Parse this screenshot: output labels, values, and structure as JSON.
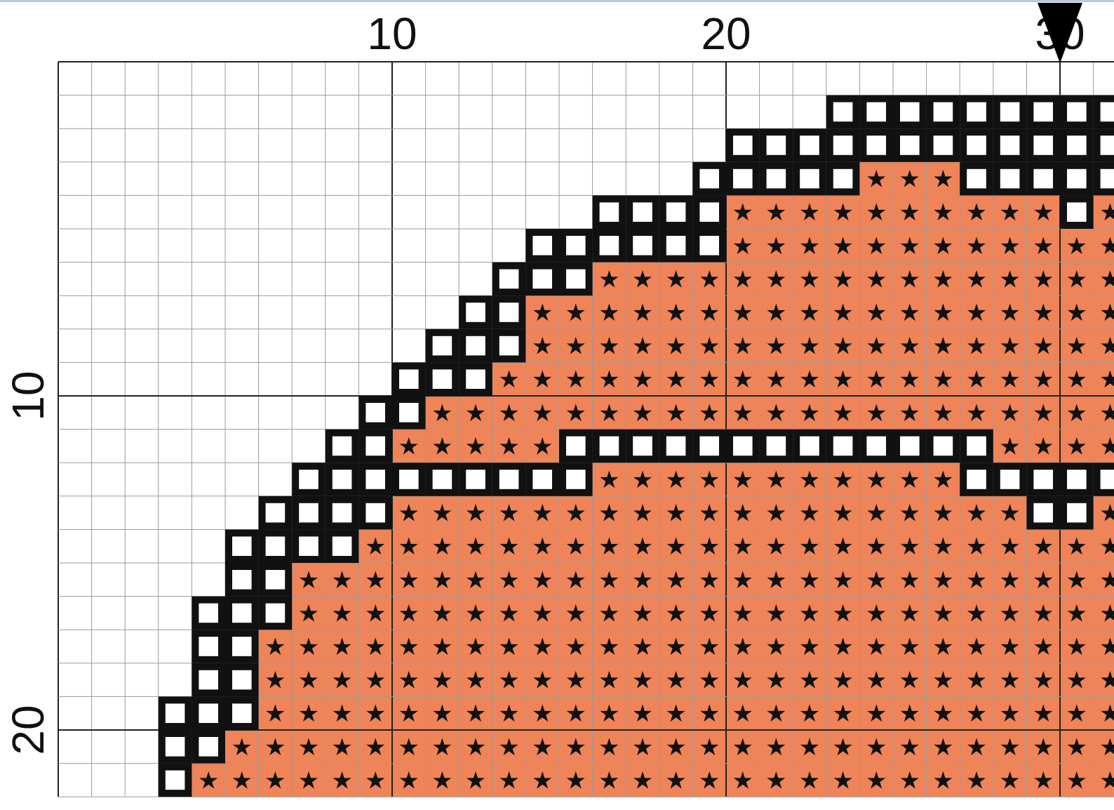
{
  "pattern": {
    "columns": 32,
    "rows": 22,
    "colors": {
      "fill": "#ef8459",
      "outline": "#111111",
      "symbol": "#111111",
      "grid_minor": "#9a9a9a",
      "grid_major": "#222222",
      "grid_on_fill": "#d9b6a6",
      "background": "#ffffff",
      "top_rule": "#b7c7e6"
    },
    "symbols": {
      "fill": "★",
      "outline": "square-outline"
    },
    "axes": {
      "x_labels": [
        {
          "value": 10,
          "text": "10"
        },
        {
          "value": 20,
          "text": "20"
        },
        {
          "value": 30,
          "text": "30"
        }
      ],
      "y_labels": [
        {
          "value": 10,
          "text": "10"
        },
        {
          "value": 20,
          "text": "20"
        }
      ],
      "center_marker_column": 30
    },
    "rows_data": [
      {
        "row": 1,
        "outline": [],
        "fill": []
      },
      {
        "row": 2,
        "outline": [
          [
            24,
            32
          ]
        ],
        "fill": []
      },
      {
        "row": 3,
        "outline": [
          [
            21,
            32
          ]
        ],
        "fill": []
      },
      {
        "row": 4,
        "outline": [
          [
            20,
            24
          ],
          [
            28,
            32
          ]
        ],
        "fill": [
          [
            25,
            27
          ]
        ]
      },
      {
        "row": 5,
        "outline": [
          [
            17,
            20
          ],
          [
            31,
            31
          ]
        ],
        "fill": [
          [
            21,
            30
          ],
          [
            32,
            32
          ]
        ]
      },
      {
        "row": 6,
        "outline": [
          [
            15,
            20
          ]
        ],
        "fill": [
          [
            21,
            32
          ]
        ]
      },
      {
        "row": 7,
        "outline": [
          [
            14,
            16
          ]
        ],
        "fill": [
          [
            17,
            32
          ]
        ]
      },
      {
        "row": 8,
        "outline": [
          [
            13,
            14
          ]
        ],
        "fill": [
          [
            15,
            32
          ]
        ]
      },
      {
        "row": 9,
        "outline": [
          [
            12,
            14
          ]
        ],
        "fill": [
          [
            15,
            32
          ]
        ]
      },
      {
        "row": 10,
        "outline": [
          [
            11,
            13
          ]
        ],
        "fill": [
          [
            14,
            32
          ]
        ]
      },
      {
        "row": 11,
        "outline": [
          [
            10,
            11
          ]
        ],
        "fill": [
          [
            12,
            32
          ]
        ]
      },
      {
        "row": 12,
        "outline": [
          [
            9,
            10
          ],
          [
            16,
            28
          ]
        ],
        "fill": [
          [
            11,
            15
          ],
          [
            29,
            32
          ]
        ]
      },
      {
        "row": 13,
        "outline": [
          [
            8,
            16
          ],
          [
            28,
            32
          ]
        ],
        "fill": [
          [
            17,
            27
          ]
        ]
      },
      {
        "row": 14,
        "outline": [
          [
            7,
            10
          ],
          [
            30,
            31
          ]
        ],
        "fill": [
          [
            11,
            29
          ],
          [
            32,
            32
          ]
        ]
      },
      {
        "row": 15,
        "outline": [
          [
            6,
            9
          ]
        ],
        "fill": [
          [
            10,
            32
          ]
        ]
      },
      {
        "row": 16,
        "outline": [
          [
            6,
            7
          ]
        ],
        "fill": [
          [
            8,
            32
          ]
        ]
      },
      {
        "row": 17,
        "outline": [
          [
            5,
            7
          ]
        ],
        "fill": [
          [
            8,
            32
          ]
        ]
      },
      {
        "row": 18,
        "outline": [
          [
            5,
            6
          ]
        ],
        "fill": [
          [
            7,
            32
          ]
        ]
      },
      {
        "row": 19,
        "outline": [
          [
            5,
            6
          ]
        ],
        "fill": [
          [
            7,
            32
          ]
        ]
      },
      {
        "row": 20,
        "outline": [
          [
            4,
            6
          ]
        ],
        "fill": [
          [
            7,
            32
          ]
        ]
      },
      {
        "row": 21,
        "outline": [
          [
            4,
            5
          ]
        ],
        "fill": [
          [
            6,
            32
          ]
        ]
      },
      {
        "row": 22,
        "outline": [
          [
            4,
            4
          ]
        ],
        "fill": [
          [
            5,
            32
          ]
        ]
      }
    ]
  }
}
